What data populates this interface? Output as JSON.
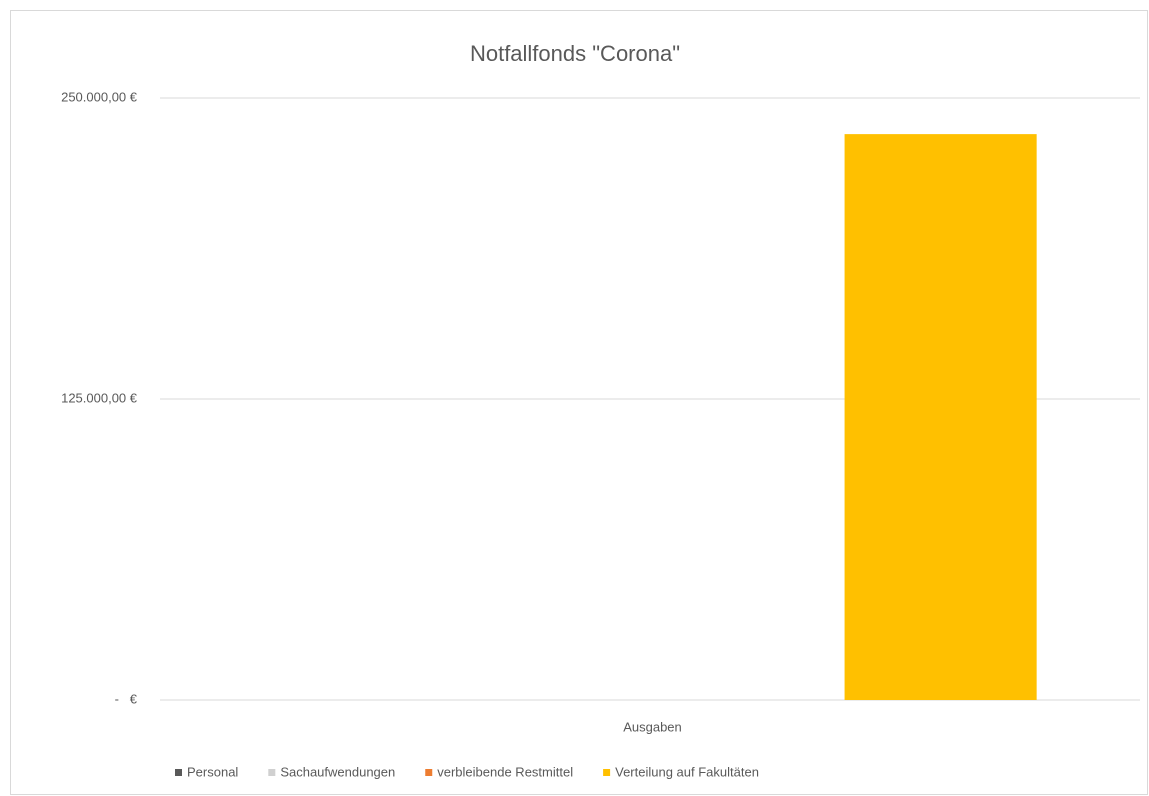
{
  "chart_data": {
    "type": "bar",
    "title": "Notfallfonds \"Corona\"",
    "categories": [
      "Ausgaben"
    ],
    "series": [
      {
        "name": "Personal",
        "color": "#595959",
        "values": [
          0
        ]
      },
      {
        "name": "Sachaufwendungen",
        "color": "#d0d0d0",
        "values": [
          0
        ]
      },
      {
        "name": "verbleibende Restmittel",
        "color": "#ed7d31",
        "values": [
          0
        ]
      },
      {
        "name": "Verteilung auf Fakultäten",
        "color": "#ffc000",
        "values": [
          235000
        ]
      }
    ],
    "ylim": [
      0,
      250000
    ],
    "yticks": [
      {
        "value": 0,
        "label": "-   €"
      },
      {
        "value": 125000,
        "label": "125.000,00 €"
      },
      {
        "value": 250000,
        "label": "250.000,00 €"
      }
    ],
    "grid": true,
    "legend": "bottom"
  }
}
